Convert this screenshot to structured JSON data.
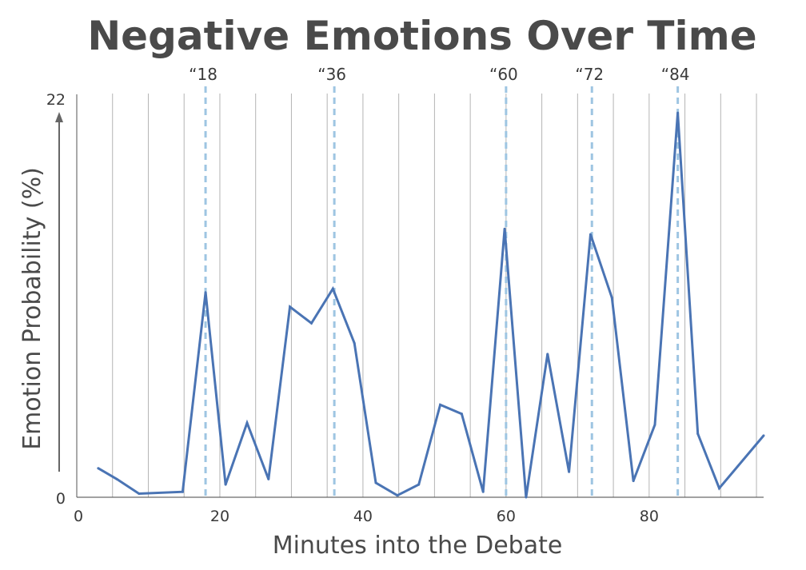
{
  "chart_data": {
    "type": "line",
    "title": "Negative Emotions Over Time",
    "xlabel": "Minutes into the Debate",
    "ylabel": "Emotion Probability (%)",
    "xlim": [
      0,
      96
    ],
    "ylim": [
      0,
      22
    ],
    "x_ticks": [
      "0",
      "20",
      "40",
      "60",
      "80"
    ],
    "x_tick_values": [
      0,
      20,
      40,
      60,
      80
    ],
    "y_ticks": [
      "0",
      "22"
    ],
    "y_tick_values": [
      0,
      22
    ],
    "gridlines_x": [
      5,
      10,
      15,
      20,
      25,
      30,
      35,
      40,
      45,
      50,
      55,
      60,
      65,
      70,
      75,
      80,
      85,
      90,
      95
    ],
    "markers": [
      {
        "label": "“18",
        "x": 18
      },
      {
        "label": "“36",
        "x": 36
      },
      {
        "label": "“60",
        "x": 60
      },
      {
        "label": "“72",
        "x": 72
      },
      {
        "label": "“84",
        "x": 84
      }
    ],
    "colors": {
      "line": "#4a74b4",
      "marker": "#9ec5e2",
      "grid": "#b4b4b4",
      "axis": "#444444"
    },
    "series": [
      {
        "x": [
          3,
          5.6,
          8.7,
          14.8,
          18,
          20.8,
          23.8,
          26.8,
          29.8,
          32.8,
          35.8,
          38.8,
          41.8,
          44.8,
          47.8,
          50.8,
          53.8,
          56.8,
          59.8,
          62.8,
          65.8,
          68.8,
          71.8,
          74.8,
          77.8,
          80.8,
          84,
          86.8,
          89.8,
          96
        ],
        "y": [
          1.6,
          1.0,
          0.2,
          0.3,
          11.3,
          0.7,
          4.1,
          1.0,
          10.5,
          9.6,
          11.5,
          8.5,
          0.8,
          0.1,
          0.7,
          5.1,
          4.6,
          0.3,
          14.8,
          0.0,
          7.9,
          1.4,
          14.5,
          11.0,
          0.9,
          4.0,
          21.2,
          3.5,
          0.5,
          3.4
        ]
      }
    ]
  }
}
